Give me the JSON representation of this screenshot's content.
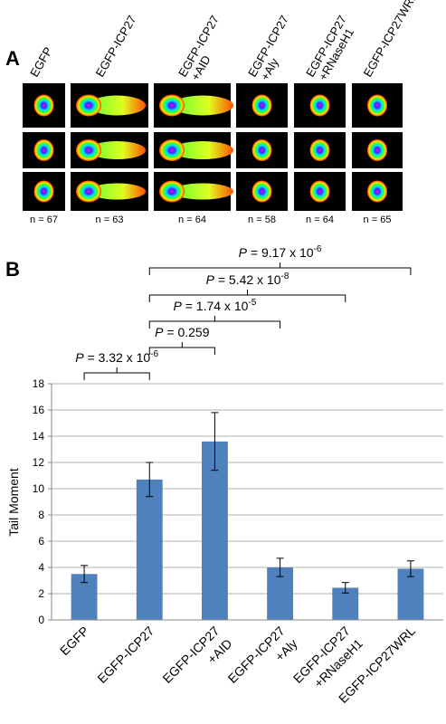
{
  "panel_a": {
    "label": "A",
    "columns": [
      [
        "EGFP"
      ],
      [
        "EGFP-ICP27"
      ],
      [
        "EGFP-ICP27",
        "+AID"
      ],
      [
        "EGFP-ICP27",
        "+Aly"
      ],
      [
        "EGFP-ICP27",
        "+RNaseH1"
      ],
      [
        "EGFP-ICP27WRL"
      ]
    ],
    "counts": [
      "n = 67",
      "n = 63",
      "n = 64",
      "n = 58",
      "n = 64",
      "n = 65"
    ]
  },
  "chart_data": {
    "type": "bar",
    "label": "B",
    "y_label": "Tail Moment",
    "categories": [
      [
        "EGFP"
      ],
      [
        "EGFP-ICP27"
      ],
      [
        "EGFP-ICP27",
        "+AID"
      ],
      [
        "EGFP-ICP27",
        "+Aly"
      ],
      [
        "EGFP-ICP27",
        "+RNaseH1"
      ],
      [
        "EGFP-ICP27WRL"
      ]
    ],
    "values": [
      3.5,
      10.7,
      13.6,
      4.0,
      2.45,
      3.9
    ],
    "errors": [
      0.65,
      1.3,
      2.2,
      0.7,
      0.4,
      0.6
    ],
    "color": "#4f81bd",
    "ylim": [
      0,
      18
    ],
    "yticks": [
      0,
      2,
      4,
      6,
      8,
      10,
      12,
      14,
      16,
      18
    ],
    "grid": true,
    "annotations": [
      {
        "p": "P",
        "text": " = 3.32 x 10",
        "exp": "-6"
      },
      {
        "p": "P",
        "text": " = 0.259"
      },
      {
        "p": "P",
        "text": " = 1.74 x 10",
        "exp": "-5"
      },
      {
        "p": "P",
        "text": " = 5.42 x 10",
        "exp": "-8"
      },
      {
        "p": "P",
        "text": " = 9.17 x 10",
        "exp": "-6"
      }
    ]
  }
}
